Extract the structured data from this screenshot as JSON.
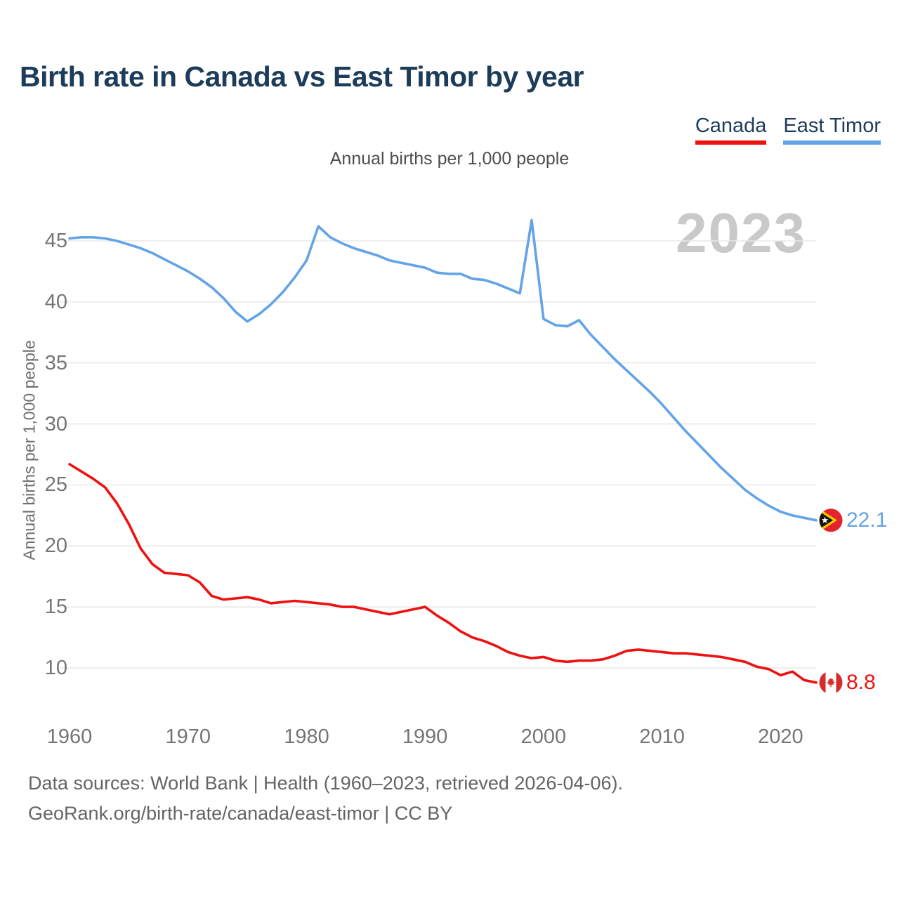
{
  "title": "Birth rate in Canada vs East Timor by year",
  "subtitle": "Annual births per 1,000 people",
  "watermark": "2023",
  "legend": {
    "items": [
      {
        "label": "Canada",
        "color": "#ee1111"
      },
      {
        "label": "East Timor",
        "color": "#64a4e6"
      }
    ]
  },
  "end_labels": {
    "east_timor": "22.1",
    "canada": "8.8"
  },
  "flags": {
    "east_timor": {
      "red": "#e3242b",
      "yellow": "#fdc700",
      "black": "#151515",
      "star": "#ffffff"
    },
    "canada": {
      "red": "#d62d2a",
      "white": "#ffffff"
    }
  },
  "axes": {
    "y_title": "Annual births per 1,000 people",
    "y_ticks": [
      45,
      40,
      35,
      30,
      25,
      20,
      15,
      10
    ],
    "x_ticks": [
      1960,
      1970,
      1980,
      1990,
      2000,
      2010,
      2020
    ]
  },
  "footer": {
    "line1": "Data sources: World Bank | Health (1960–2023, retrieved 2026-04-06).",
    "line2": "GeoRank.org/birth-rate/canada/east-timor | CC BY"
  },
  "chart_data": {
    "type": "line",
    "title": "Annual births per 1,000 people",
    "xlabel": "",
    "ylabel": "Annual births per 1,000 people",
    "ylim": [
      8,
      47.5
    ],
    "yticks": [
      10,
      15,
      20,
      25,
      30,
      35,
      40,
      45
    ],
    "xticks": [
      1960,
      1970,
      1980,
      1990,
      2000,
      2010,
      2020
    ],
    "grid": "horizontal",
    "legend_position": "top-right",
    "x": [
      1960,
      1961,
      1962,
      1963,
      1964,
      1965,
      1966,
      1967,
      1968,
      1969,
      1970,
      1971,
      1972,
      1973,
      1974,
      1975,
      1976,
      1977,
      1978,
      1979,
      1980,
      1981,
      1982,
      1983,
      1984,
      1985,
      1986,
      1987,
      1988,
      1989,
      1990,
      1991,
      1992,
      1993,
      1994,
      1995,
      1996,
      1997,
      1998,
      1999,
      2000,
      2001,
      2002,
      2003,
      2004,
      2005,
      2006,
      2007,
      2008,
      2009,
      2010,
      2011,
      2012,
      2013,
      2014,
      2015,
      2016,
      2017,
      2018,
      2019,
      2020,
      2021,
      2022,
      2023
    ],
    "series": [
      {
        "name": "Canada",
        "color": "#ee1111",
        "final_value": 8.8,
        "values": [
          26.7,
          26.1,
          25.5,
          24.8,
          23.5,
          21.8,
          19.8,
          18.5,
          17.8,
          17.7,
          17.6,
          17.0,
          15.9,
          15.6,
          15.7,
          15.8,
          15.6,
          15.3,
          15.4,
          15.5,
          15.4,
          15.3,
          15.2,
          15.0,
          15.0,
          14.8,
          14.6,
          14.4,
          14.6,
          14.8,
          15.0,
          14.3,
          13.7,
          13.0,
          12.5,
          12.2,
          11.8,
          11.3,
          11.0,
          10.8,
          10.9,
          10.6,
          10.5,
          10.6,
          10.6,
          10.7,
          11.0,
          11.4,
          11.5,
          11.4,
          11.3,
          11.2,
          11.2,
          11.1,
          11.0,
          10.9,
          10.7,
          10.5,
          10.1,
          9.9,
          9.4,
          9.7,
          9.0,
          8.8
        ]
      },
      {
        "name": "East Timor",
        "color": "#64a4e6",
        "final_value": 22.1,
        "values": [
          45.2,
          45.3,
          45.3,
          45.2,
          45.0,
          44.7,
          44.4,
          44.0,
          43.5,
          43.0,
          42.5,
          41.9,
          41.2,
          40.3,
          39.2,
          38.4,
          39.0,
          39.8,
          40.8,
          42.0,
          43.4,
          46.2,
          45.3,
          44.8,
          44.4,
          44.1,
          43.8,
          43.4,
          43.2,
          43.0,
          42.8,
          42.4,
          42.3,
          42.3,
          41.9,
          41.8,
          41.5,
          41.1,
          40.7,
          46.7,
          38.6,
          38.1,
          38.0,
          38.5,
          37.3,
          36.3,
          35.3,
          34.4,
          33.5,
          32.6,
          31.6,
          30.5,
          29.4,
          28.4,
          27.4,
          26.4,
          25.5,
          24.6,
          23.9,
          23.3,
          22.8,
          22.5,
          22.3,
          22.1
        ]
      }
    ]
  }
}
